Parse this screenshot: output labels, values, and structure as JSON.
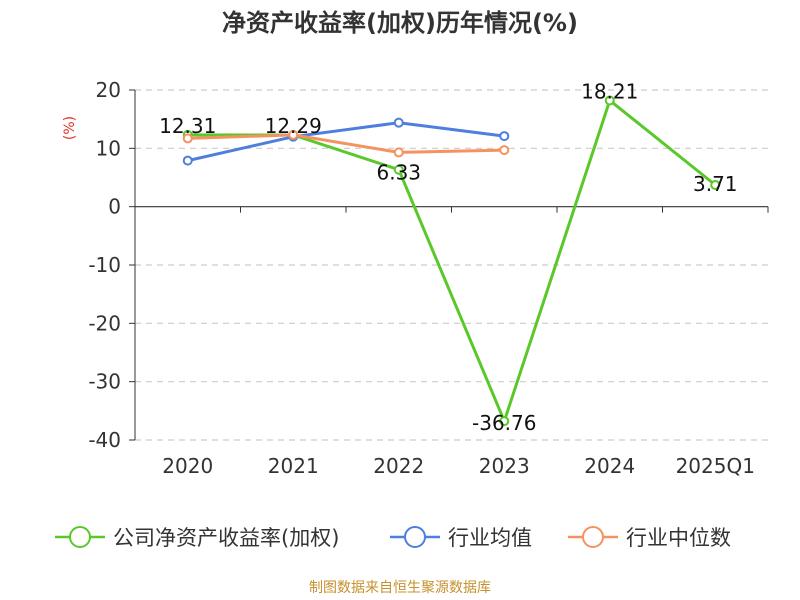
{
  "chart_data": {
    "type": "line",
    "title": "净资产收益率(加权)历年情况(%)",
    "ylabel": "(%)",
    "xlabel": "",
    "categories": [
      "2020",
      "2021",
      "2022",
      "2023",
      "2024",
      "2025Q1"
    ],
    "ylim": [
      -40,
      20
    ],
    "yticks": [
      20,
      10,
      0,
      -10,
      -20,
      -30,
      -40
    ],
    "grid": true,
    "legend_position": "bottom",
    "series": [
      {
        "name": "公司净资产收益率(加权)",
        "color": "#5ac82a",
        "values": [
          12.31,
          12.29,
          6.33,
          -36.76,
          18.21,
          3.71
        ],
        "labels": [
          "12.31",
          "12.29",
          "6.33",
          "-36.76",
          "18.21",
          "3.71"
        ]
      },
      {
        "name": "行业均值",
        "color": "#4e7fde",
        "values": [
          7.9,
          12.0,
          14.4,
          12.1,
          null,
          null
        ]
      },
      {
        "name": "行业中位数",
        "color": "#f4935f",
        "values": [
          11.7,
          12.3,
          9.3,
          9.7,
          null,
          null
        ]
      }
    ],
    "source": "制图数据来自恒生聚源数据库"
  }
}
